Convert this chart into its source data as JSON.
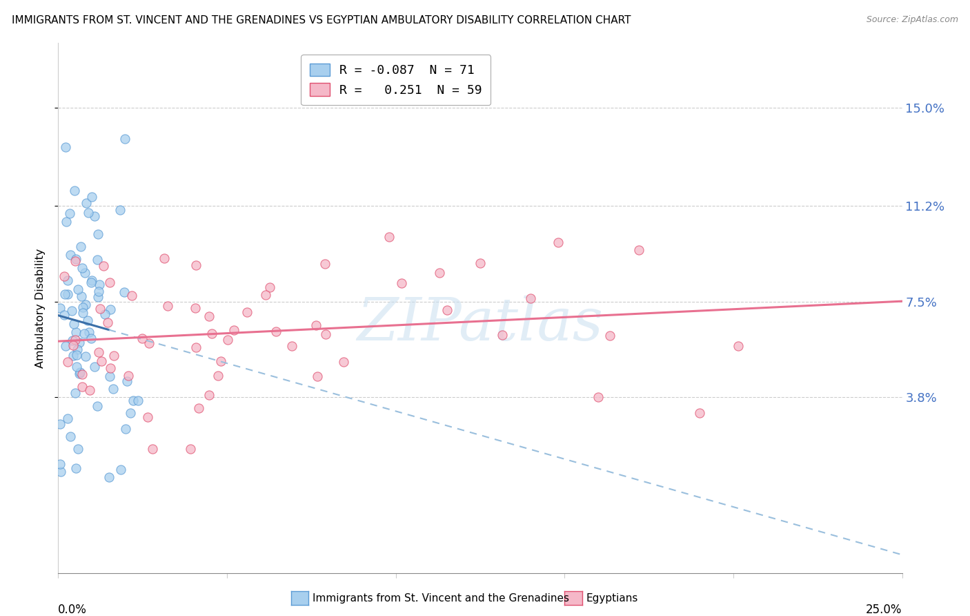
{
  "title": "IMMIGRANTS FROM ST. VINCENT AND THE GRENADINES VS EGYPTIAN AMBULATORY DISABILITY CORRELATION CHART",
  "source": "Source: ZipAtlas.com",
  "ylabel": "Ambulatory Disability",
  "ytick_values": [
    0.038,
    0.075,
    0.112,
    0.15
  ],
  "ytick_labels": [
    "3.8%",
    "7.5%",
    "11.2%",
    "15.0%"
  ],
  "xlim": [
    0.0,
    0.25
  ],
  "ylim": [
    -0.03,
    0.175
  ],
  "blue_color_face": "#A8CFEE",
  "blue_color_edge": "#5B9BD5",
  "pink_color_face": "#F5B8C8",
  "pink_color_edge": "#E05070",
  "blue_line_color": "#3A6FA8",
  "blue_dash_color": "#9ABFDD",
  "pink_line_color": "#E87090",
  "watermark_color": "#CADFF0",
  "legend_label_blue": "R = -0.087  N = 71",
  "legend_label_pink": "R =   0.251  N = 59",
  "bottom_label_blue": "Immigrants from St. Vincent and the Grenadines",
  "bottom_label_pink": "Egyptians",
  "ytick_color": "#4472C4",
  "grid_color": "#CCCCCC",
  "xtick_positions": [
    0.0,
    0.05,
    0.1,
    0.15,
    0.2,
    0.25
  ]
}
